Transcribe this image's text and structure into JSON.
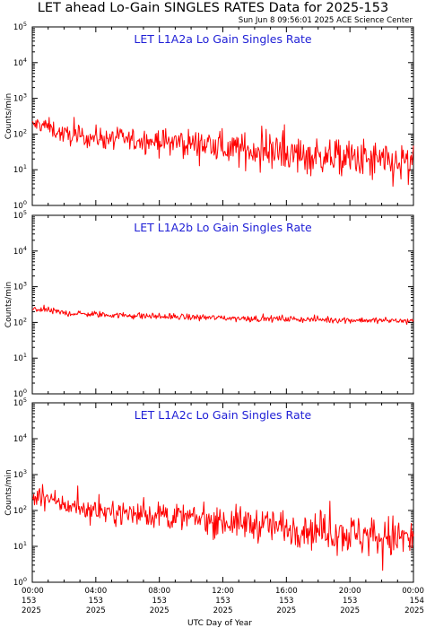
{
  "page": {
    "title": "LET ahead Lo-Gain SINGLES RATES Data for 2025-153",
    "timestamp": "Sun Jun  8 09:56:01 2025 ACE Science Center"
  },
  "colors": {
    "series": "#ff0000",
    "panel_title": "#1f1fd6"
  },
  "chart_data": [
    {
      "type": "line",
      "title": "LET L1A2a Lo Gain Singles Rate",
      "ylabel": "Counts/min",
      "yscale": "log",
      "ylim": [
        1,
        100000
      ],
      "xlim": [
        0,
        24
      ],
      "grid": false,
      "series": [
        {
          "x": [
            0,
            0.5,
            1,
            1.5,
            2,
            3,
            4,
            5,
            6,
            7,
            8,
            9,
            10,
            11,
            12,
            13,
            14,
            15,
            16,
            17,
            18,
            19,
            20,
            21,
            22,
            22.5,
            23,
            23.5,
            24
          ],
          "values": [
            175,
            190,
            160,
            120,
            95,
            85,
            80,
            75,
            70,
            65,
            62,
            58,
            55,
            48,
            42,
            38,
            35,
            32,
            28,
            26,
            24,
            22,
            20,
            18,
            16,
            14,
            15,
            14,
            13
          ]
        }
      ]
    },
    {
      "type": "line",
      "title": "LET L1A2b Lo Gain Singles Rate",
      "ylabel": "Counts/min",
      "yscale": "log",
      "ylim": [
        1,
        100000
      ],
      "xlim": [
        0,
        24
      ],
      "grid": false,
      "series": [
        {
          "x": [
            0,
            0.5,
            1,
            2,
            3,
            4,
            5,
            6,
            7,
            8,
            9,
            10,
            11,
            12,
            13,
            14,
            15,
            16,
            17,
            18,
            19,
            20,
            21,
            22,
            23,
            24
          ],
          "values": [
            230,
            235,
            215,
            185,
            175,
            168,
            162,
            158,
            152,
            147,
            143,
            140,
            137,
            134,
            131,
            129,
            127,
            125,
            123,
            121,
            119,
            117,
            115,
            113,
            112,
            110
          ]
        }
      ]
    },
    {
      "type": "line",
      "title": "LET L1A2c Lo Gain Singles Rate",
      "ylabel": "Counts/min",
      "yscale": "log",
      "ylim": [
        1,
        100000
      ],
      "xlim": [
        0,
        24
      ],
      "grid": false,
      "series": [
        {
          "x": [
            0,
            0.5,
            1,
            1.5,
            2,
            3,
            4,
            5,
            6,
            7,
            8,
            9,
            10,
            11,
            12,
            13,
            14,
            15,
            16,
            17,
            18,
            19,
            20,
            21,
            22,
            23,
            24
          ],
          "values": [
            225,
            235,
            210,
            170,
            140,
            120,
            100,
            90,
            85,
            78,
            72,
            66,
            60,
            55,
            50,
            45,
            42,
            38,
            34,
            32,
            28,
            26,
            22,
            20,
            18,
            17,
            16
          ]
        }
      ]
    }
  ],
  "axes": {
    "y_ticks": [
      {
        "value": 1,
        "base": "10",
        "exp": "0"
      },
      {
        "value": 10,
        "base": "10",
        "exp": "1"
      },
      {
        "value": 100,
        "base": "10",
        "exp": "2"
      },
      {
        "value": 1000,
        "base": "10",
        "exp": "3"
      },
      {
        "value": 10000,
        "base": "10",
        "exp": "4"
      },
      {
        "value": 100000,
        "base": "10",
        "exp": "5"
      }
    ],
    "x_ticks": [
      {
        "hour": 0,
        "time": "00:00",
        "doy": "153",
        "year": "2025"
      },
      {
        "hour": 4,
        "time": "04:00",
        "doy": "153",
        "year": "2025"
      },
      {
        "hour": 8,
        "time": "08:00",
        "doy": "153",
        "year": "2025"
      },
      {
        "hour": 12,
        "time": "12:00",
        "doy": "153",
        "year": "2025"
      },
      {
        "hour": 16,
        "time": "16:00",
        "doy": "153",
        "year": "2025"
      },
      {
        "hour": 20,
        "time": "20:00",
        "doy": "153",
        "year": "2025"
      },
      {
        "hour": 24,
        "time": "00:00",
        "doy": "154",
        "year": "2025"
      }
    ],
    "xlabel": "UTC Day of Year"
  }
}
